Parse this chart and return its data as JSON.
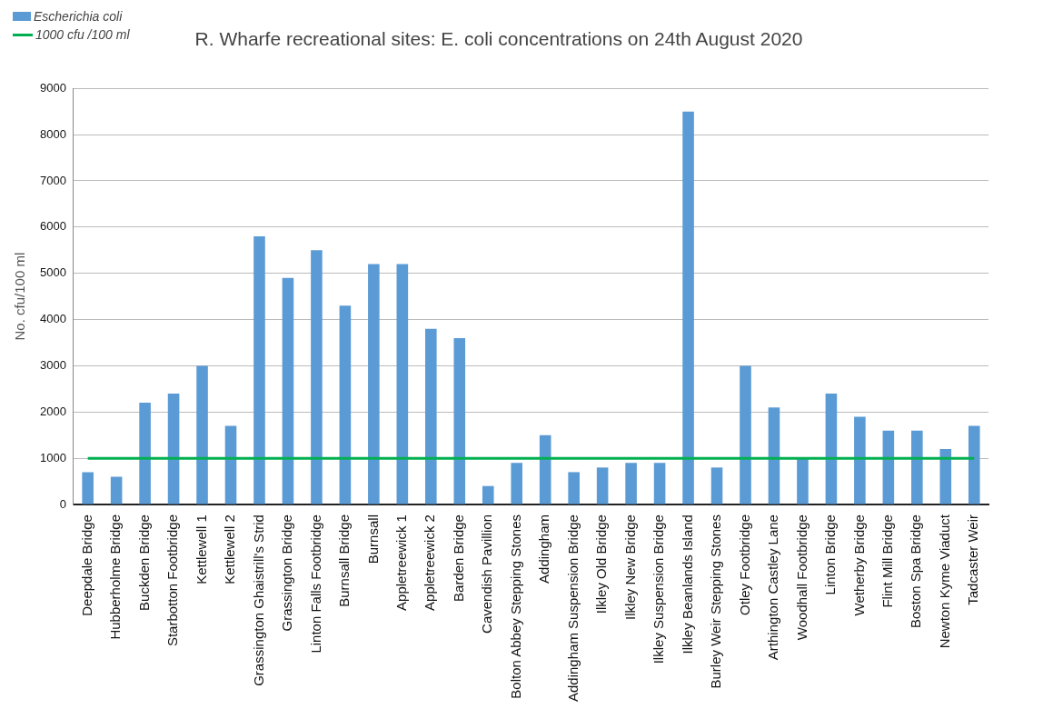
{
  "chart_data": {
    "type": "bar",
    "title": "R. Wharfe recreational sites: E. coli concentrations on 24th August 2020",
    "ylabel": "No. cfu/100 ml",
    "categories": [
      "Deepdale Bridge",
      "Hubberholme Bridge",
      "Buckden Bridge",
      "Starbotton Footbridge",
      "Kettlewell 1",
      "Kettlewell 2",
      "Grassington Ghaistrill's Strid",
      "Grassington Bridge",
      "Linton Falls Footbridge",
      "Burnsall Bridge",
      "Burnsall",
      "Appletreewick 1",
      "Appletreewick 2",
      "Barden Bridge",
      "Cavendish Pavillion",
      "Bolton Abbey Stepping Stones",
      "Addingham",
      "Addingham Suspension Bridge",
      "Ilkley Old Bridge",
      "Ilkley New Bridge",
      "Ilkley Suspension Bridge",
      "Ilkley Beanlands Island",
      "Burley Weir Stepping Stones",
      "Otley Footbridge",
      "Arthington Castley Lane",
      "Woodhall Footbridge",
      "Linton Bridge",
      "Wetherby Bridge",
      "Flint Mill Bridge",
      "Boston Spa Bridge",
      "Newton Kyme Viaduct",
      "Tadcaster Weir"
    ],
    "series": [
      {
        "name": "Escherichia coli",
        "color": "#5b9bd5",
        "values": [
          700,
          600,
          2200,
          2400,
          3000,
          1700,
          5800,
          4900,
          5500,
          4300,
          5200,
          5200,
          3800,
          3600,
          400,
          900,
          1500,
          700,
          800,
          900,
          900,
          8500,
          800,
          3000,
          2100,
          1000,
          2400,
          1900,
          1600,
          1600,
          1200,
          1700
        ]
      },
      {
        "name": "1000 cfu /100 ml",
        "type": "line",
        "color": "#00b050",
        "values": [
          1000,
          1000,
          1000,
          1000,
          1000,
          1000,
          1000,
          1000,
          1000,
          1000,
          1000,
          1000,
          1000,
          1000,
          1000,
          1000,
          1000,
          1000,
          1000,
          1000,
          1000,
          1000,
          1000,
          1000,
          1000,
          1000,
          1000,
          1000,
          1000,
          1000,
          1000,
          1000
        ]
      }
    ],
    "ylim": [
      0,
      9000
    ],
    "yticks": [
      0,
      1000,
      2000,
      3000,
      4000,
      5000,
      6000,
      7000,
      8000,
      9000
    ],
    "grid": "y",
    "legend": "top left",
    "marker": "none"
  }
}
